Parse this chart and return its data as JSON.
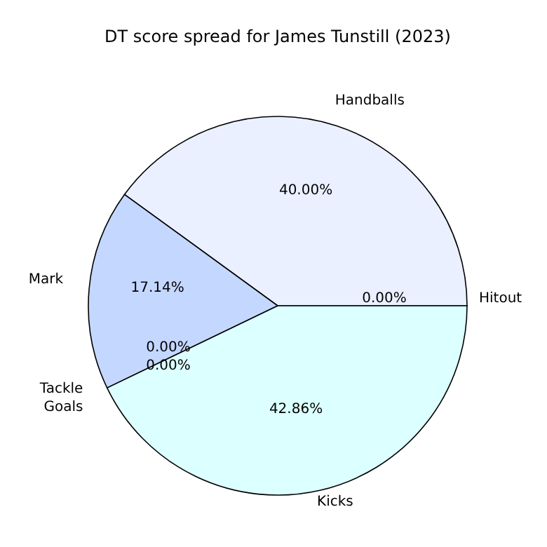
{
  "chart_data": {
    "type": "pie",
    "title": "DT score spread for James Tunstill (2023)",
    "categories": [
      "Handballs",
      "Mark",
      "Tackle",
      "Goals",
      "Kicks",
      "Hitout"
    ],
    "values": [
      40.0,
      17.14,
      0.0,
      0.0,
      42.86,
      0.0
    ],
    "value_labels": [
      "40.00%",
      "17.14%",
      "0.00%",
      "0.00%",
      "42.86%",
      "0.00%"
    ],
    "colors": [
      "#eaf0ff",
      "#c4d7ff",
      "#b0c8ff",
      "#a0b8ff",
      "#dcffff",
      "#d0e0ff"
    ]
  }
}
